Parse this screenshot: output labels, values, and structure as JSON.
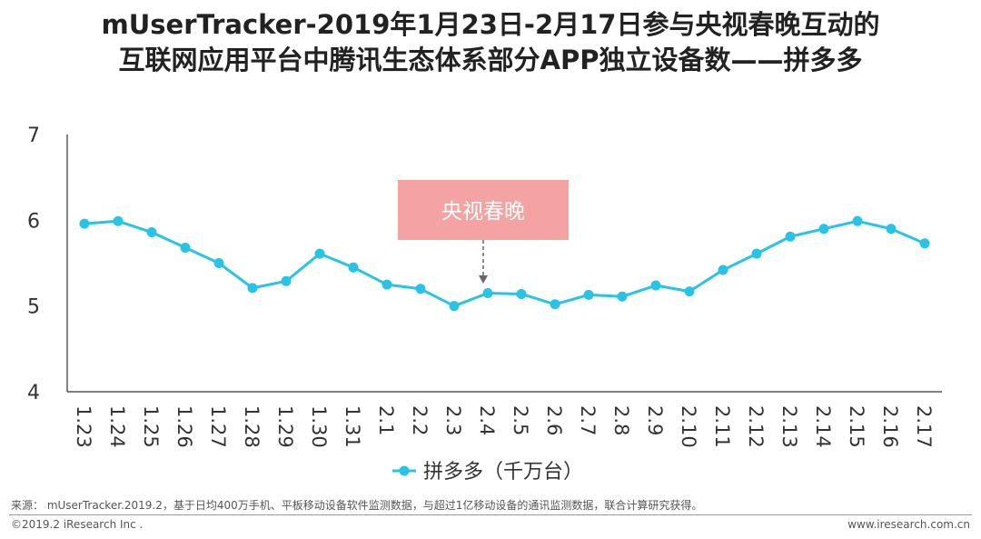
{
  "title": {
    "line1": "mUserTracker-2019年1月23日-2月17日参与央视春晚互动的",
    "line2": "互联网应用平台中腾讯生态体系部分APP独立设备数——拼多多"
  },
  "chart_data": {
    "type": "line",
    "categories": [
      "1.23",
      "1.24",
      "1.25",
      "1.26",
      "1.27",
      "1.28",
      "1.29",
      "1.30",
      "1.31",
      "2.1",
      "2.2",
      "2.3",
      "2.4",
      "2.5",
      "2.6",
      "2.7",
      "2.8",
      "2.9",
      "2.10",
      "2.11",
      "2.12",
      "2.13",
      "2.14",
      "2.15",
      "2.16",
      "2.17"
    ],
    "series": [
      {
        "name": "拼多多（千万台）",
        "color": "#29c3e6",
        "values": [
          5.96,
          5.99,
          5.86,
          5.68,
          5.5,
          5.21,
          5.29,
          5.61,
          5.45,
          5.25,
          5.2,
          5.0,
          5.15,
          5.14,
          5.02,
          5.13,
          5.11,
          5.24,
          5.17,
          5.42,
          5.61,
          5.81,
          5.9,
          5.99,
          5.9,
          5.73
        ]
      }
    ],
    "ylim": [
      4,
      7
    ],
    "yticks": [
      "4",
      "5",
      "6",
      "7"
    ],
    "annotation": {
      "label": "央视春晚",
      "category": "2.4",
      "color": "#f4a3a3"
    },
    "legend_position": "bottom",
    "grid": false
  },
  "footer": {
    "source": "来源： mUserTracker.2019.2，基于日均400万手机、平板移动设备软件监测数据，与超过1亿移动设备的通讯监测数据，联合计算研究获得。",
    "copyright": "©2019.2 iResearch Inc .",
    "website": "www.iresearch.com.cn"
  }
}
